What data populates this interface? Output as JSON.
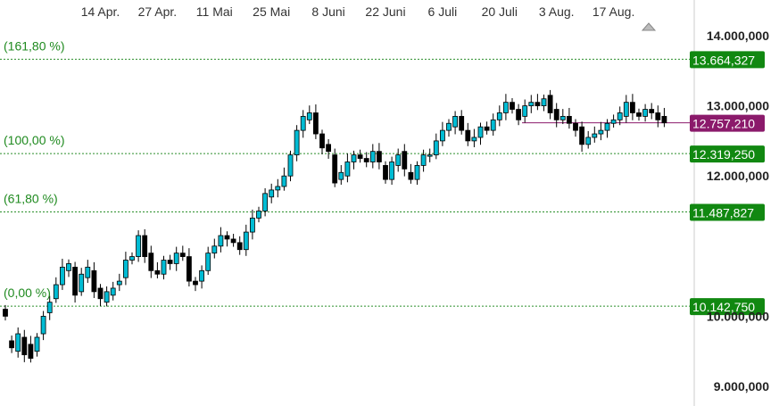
{
  "colors": {
    "fib_line": "#2a8f2a",
    "fib_tag_bg": "#118811",
    "current_tag_bg": "#8b1a6b",
    "current_line": "#8b1a6b",
    "candle_up": "#00bcd4",
    "candle_down": "#000000",
    "axis_line": "#cccccc"
  },
  "chart_data": {
    "type": "candlestick",
    "ylim": [
      8900000,
      14250000
    ],
    "grid": false,
    "x_tick_labels": [
      "14 Apr.",
      "27 Apr.",
      "11 Mai",
      "25 Mai",
      "8 Juni",
      "22 Juni",
      "6 Juli",
      "20 Juli",
      "3 Aug.",
      "17 Aug."
    ],
    "x_tick_index": [
      15,
      24,
      33,
      42,
      51,
      60,
      69,
      78,
      87,
      96
    ],
    "y_tick_values": [
      9000000,
      10000000,
      12000000,
      13000000,
      14000000
    ],
    "y_tick_labels": [
      "9.000,000",
      "10.000,000",
      "12.000,000",
      "13.000,000",
      "14.000,000"
    ],
    "fib_levels": [
      {
        "label": "(161,80 %)",
        "value": 13664327,
        "value_label": "13.664,327"
      },
      {
        "label": "(100,00 %)",
        "value": 12319250,
        "value_label": "12.319,250"
      },
      {
        "label": "(61,80 %)",
        "value": 11487827,
        "value_label": "11.487,827"
      },
      {
        "label": "(0,00 %)",
        "value": 10142750,
        "value_label": "10.142,750"
      }
    ],
    "current_price": {
      "value": 12757210,
      "value_label": "12.757,210"
    },
    "closes": [
      10000000,
      9550000,
      9750000,
      9450000,
      9400000,
      9700000,
      10000000,
      10200000,
      10450000,
      10700000,
      10750000,
      10300000,
      10600000,
      10700000,
      10350000,
      10250000,
      10350000,
      10400000,
      10500000,
      10800000,
      10850000,
      11150000,
      10850000,
      10650000,
      10600000,
      10800000,
      10750000,
      10900000,
      10850000,
      10500000,
      10450000,
      10650000,
      10900000,
      11000000,
      11150000,
      11100000,
      11050000,
      10950000,
      11200000,
      11400000,
      11500000,
      11750000,
      11800000,
      11850000,
      12000000,
      12300000,
      12650000,
      12850000,
      12900000,
      12600000,
      12400000,
      12350000,
      11900000,
      12050000,
      12200000,
      12300000,
      12250000,
      12200000,
      12350000,
      12200000,
      11950000,
      12200000,
      12300000,
      12100000,
      11950000,
      12150000,
      12300000,
      12300000,
      12500000,
      12650000,
      12750000,
      12850000,
      12650000,
      12500000,
      12550000,
      12700000,
      12650000,
      12800000,
      12900000,
      13050000,
      12950000,
      12800000,
      13000000,
      13050000,
      13000000,
      13100000,
      12900000,
      12800000,
      12850000,
      12750000,
      12650000,
      12450000,
      12550000,
      12600000,
      12650000,
      12750000,
      12800000,
      12900000,
      13050000,
      12900000,
      12850000,
      12950000,
      12900000,
      12800000,
      12757210
    ],
    "opens": [
      10100000,
      9650000,
      9500000,
      9700000,
      9600000,
      9500000,
      9750000,
      10050000,
      10250000,
      10450000,
      10650000,
      10700000,
      10350000,
      10550000,
      10650000,
      10400000,
      10200000,
      10300000,
      10450000,
      10550000,
      10800000,
      10850000,
      11150000,
      10900000,
      10650000,
      10600000,
      10800000,
      10750000,
      10900000,
      10850000,
      10500000,
      10500000,
      10650000,
      10900000,
      11000000,
      11150000,
      11100000,
      11050000,
      10950000,
      11200000,
      11400000,
      11500000,
      11700000,
      11800000,
      11850000,
      12000000,
      12300000,
      12650000,
      12800000,
      12900000,
      12600000,
      12450000,
      12300000,
      11950000,
      12000000,
      12200000,
      12300000,
      12250000,
      12200000,
      12350000,
      12150000,
      11950000,
      12150000,
      12350000,
      12050000,
      11950000,
      12150000,
      12300000,
      12300000,
      12500000,
      12650000,
      12700000,
      12850000,
      12650000,
      12500000,
      12550000,
      12700000,
      12650000,
      12800000,
      12900000,
      13050000,
      12950000,
      12850000,
      13000000,
      13050000,
      13000000,
      13150000,
      12950000,
      12800000,
      12850000,
      12750000,
      12700000,
      12450000,
      12550000,
      12600000,
      12650000,
      12750000,
      12800000,
      12850000,
      13050000,
      12900000,
      12850000,
      12950000,
      12900000,
      12850000
    ]
  }
}
